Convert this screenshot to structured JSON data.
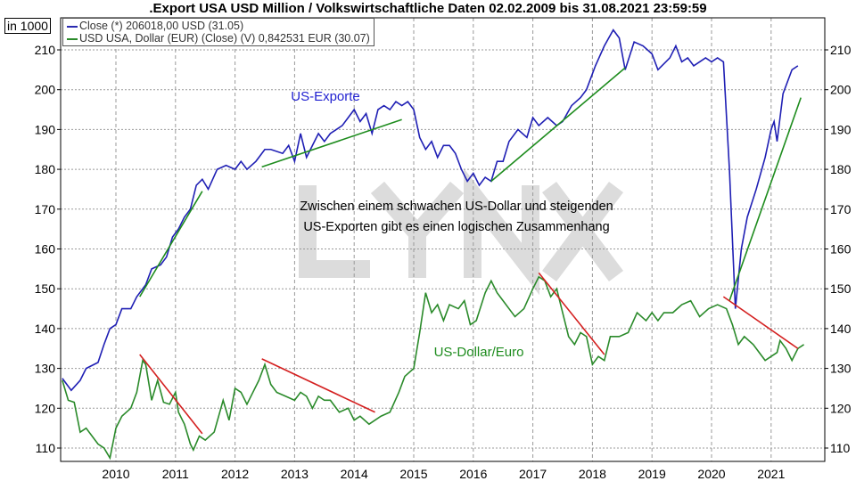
{
  "chart_data": {
    "type": "line",
    "title": ".Export USA USD Million / Volkswirtschaftliche Daten 02.02.2009 bis 31.08.2021 23:59:59",
    "unit_label": "in 1000",
    "ylim": [
      106,
      217
    ],
    "xlim": [
      2009.0,
      2021.8
    ],
    "y_ticks": [
      "110",
      "120",
      "130",
      "140",
      "150",
      "160",
      "170",
      "180",
      "190",
      "200",
      "210"
    ],
    "x_ticks": [
      "2010",
      "2011",
      "2012",
      "2013",
      "2014",
      "2015",
      "2016",
      "2017",
      "2018",
      "2019",
      "2020",
      "2021"
    ],
    "grid": true,
    "legend_position": "top-left",
    "legend": [
      {
        "label": "Close (*) 206018,00 USD (31.05)",
        "color": "#2a2ab0"
      },
      {
        "label": "USD USA, Dollar (EUR) (Close) (V) 0,842531 EUR (30.07)",
        "color": "#2a8a2a"
      }
    ],
    "annotations": {
      "exports_label": "US-Exporte",
      "dollar_label": "US-Dollar/Euro",
      "note_line1": "Zwischen einem schwachen US-Dollar und steigenden",
      "note_line2": "US-Exporten gibt es einen logischen Zusammenhang",
      "watermark": "LYNX"
    },
    "series": [
      {
        "color": "#1f1fb4",
        "x": [
          2009.1,
          2009.25,
          2009.4,
          2009.5,
          2009.7,
          2009.8,
          2009.9,
          2010.0,
          2010.1,
          2010.25,
          2010.35,
          2010.5,
          2010.6,
          2010.75,
          2010.85,
          2010.95,
          2011.05,
          2011.15,
          2011.25,
          2011.35,
          2011.45,
          2011.55,
          2011.7,
          2011.85,
          2012.0,
          2012.1,
          2012.2,
          2012.35,
          2012.5,
          2012.6,
          2012.8,
          2012.9,
          2013.0,
          2013.1,
          2013.2,
          2013.3,
          2013.4,
          2013.5,
          2013.6,
          2013.7,
          2013.8,
          2013.9,
          2014.0,
          2014.1,
          2014.2,
          2014.3,
          2014.4,
          2014.5,
          2014.6,
          2014.7,
          2014.8,
          2014.9,
          2015.0,
          2015.1,
          2015.2,
          2015.3,
          2015.4,
          2015.5,
          2015.6,
          2015.7,
          2015.8,
          2015.9,
          2016.0,
          2016.1,
          2016.2,
          2016.3,
          2016.4,
          2016.5,
          2016.6,
          2016.75,
          2016.9,
          2017.0,
          2017.1,
          2017.25,
          2017.4,
          2017.5,
          2017.65,
          2017.8,
          2017.9,
          2018.05,
          2018.2,
          2018.35,
          2018.45,
          2018.55,
          2018.7,
          2018.85,
          2019.0,
          2019.1,
          2019.3,
          2019.4,
          2019.5,
          2019.6,
          2019.7,
          2019.8,
          2019.9,
          2020.0,
          2020.1,
          2020.2,
          2020.3,
          2020.4,
          2020.5,
          2020.6,
          2020.75,
          2020.9,
          2021.0,
          2021.05,
          2021.1,
          2021.2,
          2021.35,
          2021.45
        ],
        "values": [
          127.5,
          124.5,
          127,
          130,
          131.5,
          136,
          140,
          141,
          145,
          145,
          148,
          151,
          155,
          156,
          158,
          163,
          165,
          168,
          170,
          176,
          177.5,
          175,
          180,
          181,
          180,
          182,
          180,
          182,
          185,
          185,
          184,
          186,
          182,
          189,
          183,
          186,
          189,
          187,
          189,
          190,
          191,
          193,
          195,
          192,
          194,
          189,
          195,
          196,
          195,
          197,
          196,
          197,
          195,
          188,
          185,
          187,
          183,
          186,
          186,
          184,
          180,
          177,
          179,
          176,
          178,
          177,
          182,
          182,
          187,
          190,
          188,
          193,
          191,
          193,
          191,
          192,
          196,
          198,
          200,
          206,
          211,
          215,
          213,
          205,
          212,
          211,
          209,
          205,
          208,
          211,
          207,
          208,
          206,
          207,
          208,
          207,
          208,
          207,
          180,
          145,
          160,
          168,
          175,
          183,
          190,
          192,
          187,
          199,
          205,
          206
        ]
      },
      {
        "color": "#2a8a2a",
        "x": [
          2009.1,
          2009.2,
          2009.3,
          2009.4,
          2009.5,
          2009.6,
          2009.7,
          2009.8,
          2009.9,
          2010.0,
          2010.1,
          2010.25,
          2010.35,
          2010.45,
          2010.5,
          2010.6,
          2010.7,
          2010.8,
          2010.9,
          2011.0,
          2011.05,
          2011.15,
          2011.25,
          2011.3,
          2011.4,
          2011.5,
          2011.65,
          2011.8,
          2011.9,
          2012.0,
          2012.1,
          2012.2,
          2012.3,
          2012.4,
          2012.5,
          2012.6,
          2012.7,
          2012.85,
          2013.0,
          2013.1,
          2013.2,
          2013.3,
          2013.4,
          2013.5,
          2013.6,
          2013.75,
          2013.9,
          2014.0,
          2014.1,
          2014.25,
          2014.35,
          2014.45,
          2014.6,
          2014.75,
          2014.85,
          2015.0,
          2015.1,
          2015.2,
          2015.3,
          2015.4,
          2015.5,
          2015.6,
          2015.75,
          2015.85,
          2015.95,
          2016.05,
          2016.2,
          2016.3,
          2016.4,
          2016.5,
          2016.6,
          2016.7,
          2016.85,
          2017.0,
          2017.1,
          2017.2,
          2017.3,
          2017.4,
          2017.5,
          2017.6,
          2017.7,
          2017.8,
          2017.9,
          2018.0,
          2018.1,
          2018.2,
          2018.3,
          2018.45,
          2018.6,
          2018.75,
          2018.9,
          2019.0,
          2019.1,
          2019.2,
          2019.35,
          2019.5,
          2019.65,
          2019.8,
          2019.95,
          2020.1,
          2020.25,
          2020.35,
          2020.45,
          2020.55,
          2020.7,
          2020.8,
          2020.9,
          2021.0,
          2021.1,
          2021.15,
          2021.25,
          2021.35,
          2021.45,
          2021.55
        ],
        "values": [
          127,
          122,
          121.5,
          114,
          115,
          113,
          111,
          110,
          107.5,
          115,
          118,
          120,
          124,
          132,
          131,
          122,
          127,
          121.5,
          121,
          124,
          119,
          116,
          111,
          109.5,
          113,
          112,
          114,
          122,
          117,
          125,
          124,
          121,
          124,
          127,
          131,
          126,
          124,
          123,
          122,
          124,
          123,
          120,
          123,
          122,
          122,
          119,
          120,
          117,
          118,
          116,
          117,
          118,
          119,
          124,
          128,
          130,
          139,
          149,
          144,
          146,
          142,
          146,
          145,
          147,
          141,
          142,
          149,
          152,
          149,
          147,
          145,
          143,
          145,
          150,
          153,
          152,
          148,
          150,
          144,
          138,
          136,
          139,
          138,
          131,
          133,
          132,
          138,
          138,
          139,
          144,
          142,
          144,
          142,
          144,
          144,
          146,
          147,
          143,
          145,
          146,
          145,
          141,
          136,
          138,
          136,
          134,
          132,
          133,
          134,
          137,
          135,
          132,
          135,
          136
        ]
      }
    ],
    "trendlines": [
      {
        "color": "#1e8c1e",
        "x": [
          2010.4,
          2011.45
        ],
        "y": [
          148,
          174.5
        ]
      },
      {
        "color": "#1e8c1e",
        "x": [
          2012.45,
          2014.8
        ],
        "y": [
          180.6,
          192.5
        ]
      },
      {
        "color": "#1e8c1e",
        "x": [
          2016.3,
          2018.55
        ],
        "y": [
          177,
          205.5
        ]
      },
      {
        "color": "#1e8c1e",
        "x": [
          2020.3,
          2021.5
        ],
        "y": [
          147,
          198
        ]
      },
      {
        "color": "#d42020",
        "x": [
          2010.4,
          2011.45
        ],
        "y": [
          133.5,
          113.6
        ]
      },
      {
        "color": "#d42020",
        "x": [
          2012.45,
          2014.35
        ],
        "y": [
          132.4,
          119
        ]
      },
      {
        "color": "#d42020",
        "x": [
          2017.1,
          2018.2
        ],
        "y": [
          154,
          133.5
        ]
      },
      {
        "color": "#d42020",
        "x": [
          2020.2,
          2021.45
        ],
        "y": [
          148,
          135
        ]
      }
    ]
  }
}
